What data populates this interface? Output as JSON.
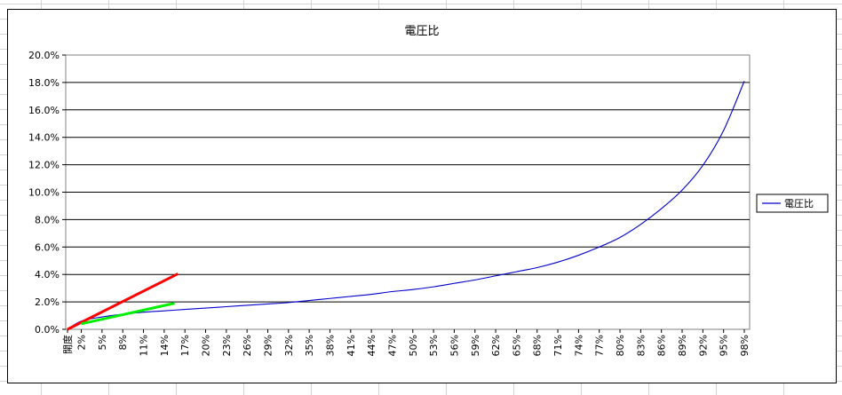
{
  "chart_data": {
    "type": "line",
    "title": "電圧比",
    "xlabel": "",
    "ylabel": "",
    "ylim": [
      0,
      0.2
    ],
    "y_tick_labels": [
      "0.0%",
      "2.0%",
      "4.0%",
      "6.0%",
      "8.0%",
      "10.0%",
      "12.0%",
      "14.0%",
      "16.0%",
      "18.0%",
      "20.0%"
    ],
    "x_tick_labels": [
      "開度",
      "2%",
      "5%",
      "8%",
      "11%",
      "14%",
      "17%",
      "20%",
      "23%",
      "26%",
      "29%",
      "32%",
      "35%",
      "38%",
      "41%",
      "44%",
      "47%",
      "50%",
      "53%",
      "56%",
      "59%",
      "62%",
      "65%",
      "68%",
      "71%",
      "74%",
      "77%",
      "80%",
      "83%",
      "86%",
      "89%",
      "92%",
      "95%",
      "98%"
    ],
    "grid": "horizontal",
    "legend": "right",
    "series": [
      {
        "name": "電圧比",
        "color": "#0000cc",
        "x": [
          0,
          2,
          5,
          8,
          11,
          14,
          17,
          20,
          23,
          26,
          29,
          32,
          35,
          38,
          41,
          44,
          47,
          50,
          53,
          56,
          59,
          62,
          65,
          68,
          71,
          74,
          77,
          80,
          83,
          86,
          89,
          92,
          95,
          98
        ],
        "values": [
          0,
          0.006,
          0.009,
          0.011,
          0.0125,
          0.0135,
          0.0145,
          0.0155,
          0.0165,
          0.0175,
          0.0185,
          0.0195,
          0.021,
          0.0225,
          0.024,
          0.0255,
          0.0275,
          0.029,
          0.031,
          0.0335,
          0.036,
          0.039,
          0.042,
          0.045,
          0.049,
          0.054,
          0.06,
          0.067,
          0.0765,
          0.088,
          0.1015,
          0.1195,
          0.145,
          0.181
        ]
      }
    ],
    "annotation_lines": [
      {
        "color": "#ff0000",
        "x": [
          0,
          16
        ],
        "values": [
          0,
          0.0405
        ]
      },
      {
        "color": "#00ee00",
        "x": [
          2,
          15.5
        ],
        "values": [
          0.004,
          0.019
        ]
      }
    ]
  }
}
